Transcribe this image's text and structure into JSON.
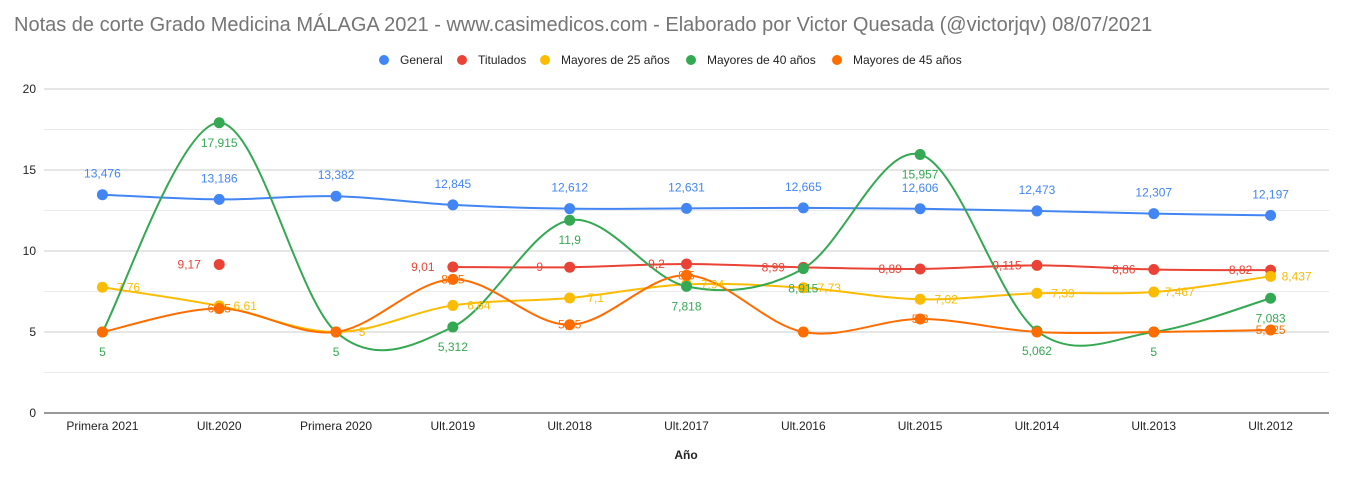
{
  "chart_data": {
    "type": "line",
    "title": "Notas de corte Grado Medicina MÁLAGA 2021 - www.casimedicos.com - Elaborado por Victor Quesada (@victorjqv)  08/07/2021",
    "xlabel": "Año",
    "ylabel": "",
    "ylim": [
      0,
      20
    ],
    "yticks": [
      0,
      5,
      10,
      15,
      20
    ],
    "grid": true,
    "legend_position": "top",
    "categories": [
      "Primera 2021",
      "Ult.2020",
      "Primera 2020",
      "Ult.2019",
      "Ult.2018",
      "Ult.2017",
      "Ult.2016",
      "Ult.2015",
      "Ult.2014",
      "Ult.2013",
      "Ult.2012"
    ],
    "series": [
      {
        "name": "General",
        "color": "#4285f4",
        "values": [
          13.476,
          13.186,
          13.382,
          12.845,
          12.612,
          12.631,
          12.665,
          12.606,
          12.473,
          12.307,
          12.197
        ],
        "labels": [
          "13,476",
          "13,186",
          "13,382",
          "12,845",
          "12,612",
          "12,631",
          "12,665",
          "12,606",
          "12,473",
          "12,307",
          "12,197"
        ]
      },
      {
        "name": "Titulados",
        "color": "#ea4335",
        "values": [
          null,
          9.17,
          null,
          9.01,
          9,
          9.2,
          8.99,
          8.89,
          9.115,
          8.86,
          8.82
        ],
        "labels": [
          null,
          "9,17",
          null,
          "9,01",
          "9",
          "9,2",
          "8,99",
          "8,89",
          "9,115",
          "8,86",
          "8,82"
        ]
      },
      {
        "name": "Mayores de 25 años",
        "color": "#fbbc04",
        "values": [
          7.76,
          6.61,
          5,
          6.64,
          7.1,
          7.94,
          7.73,
          7.02,
          7.39,
          7.467,
          8.437
        ],
        "labels": [
          "7,76",
          "6,61",
          "5",
          "6,64",
          "7,1",
          "7,94",
          "7,73",
          "7,02",
          "7,39",
          "7,467",
          "8,437"
        ]
      },
      {
        "name": "Mayores de 40 años",
        "color": "#34a853",
        "values": [
          5,
          17.915,
          5,
          5.312,
          11.9,
          7.818,
          8.915,
          15.957,
          5.062,
          5,
          7.083
        ],
        "labels": [
          "5",
          "17,915",
          "5",
          "5,312",
          "11,9",
          "7,818",
          "8,915",
          "15,957",
          "5,062",
          "5",
          "7,083"
        ]
      },
      {
        "name": "Mayores de 45 años",
        "color": "#ff6d01",
        "values": [
          5,
          6.45,
          5,
          8.25,
          5.45,
          8.5,
          5,
          5.8,
          5,
          5,
          5.125
        ],
        "labels": [
          "5",
          "6,45",
          "5",
          "8,25",
          "5,45",
          "8,5",
          "5",
          "5,8",
          "5",
          "5",
          "5,125"
        ]
      }
    ]
  }
}
